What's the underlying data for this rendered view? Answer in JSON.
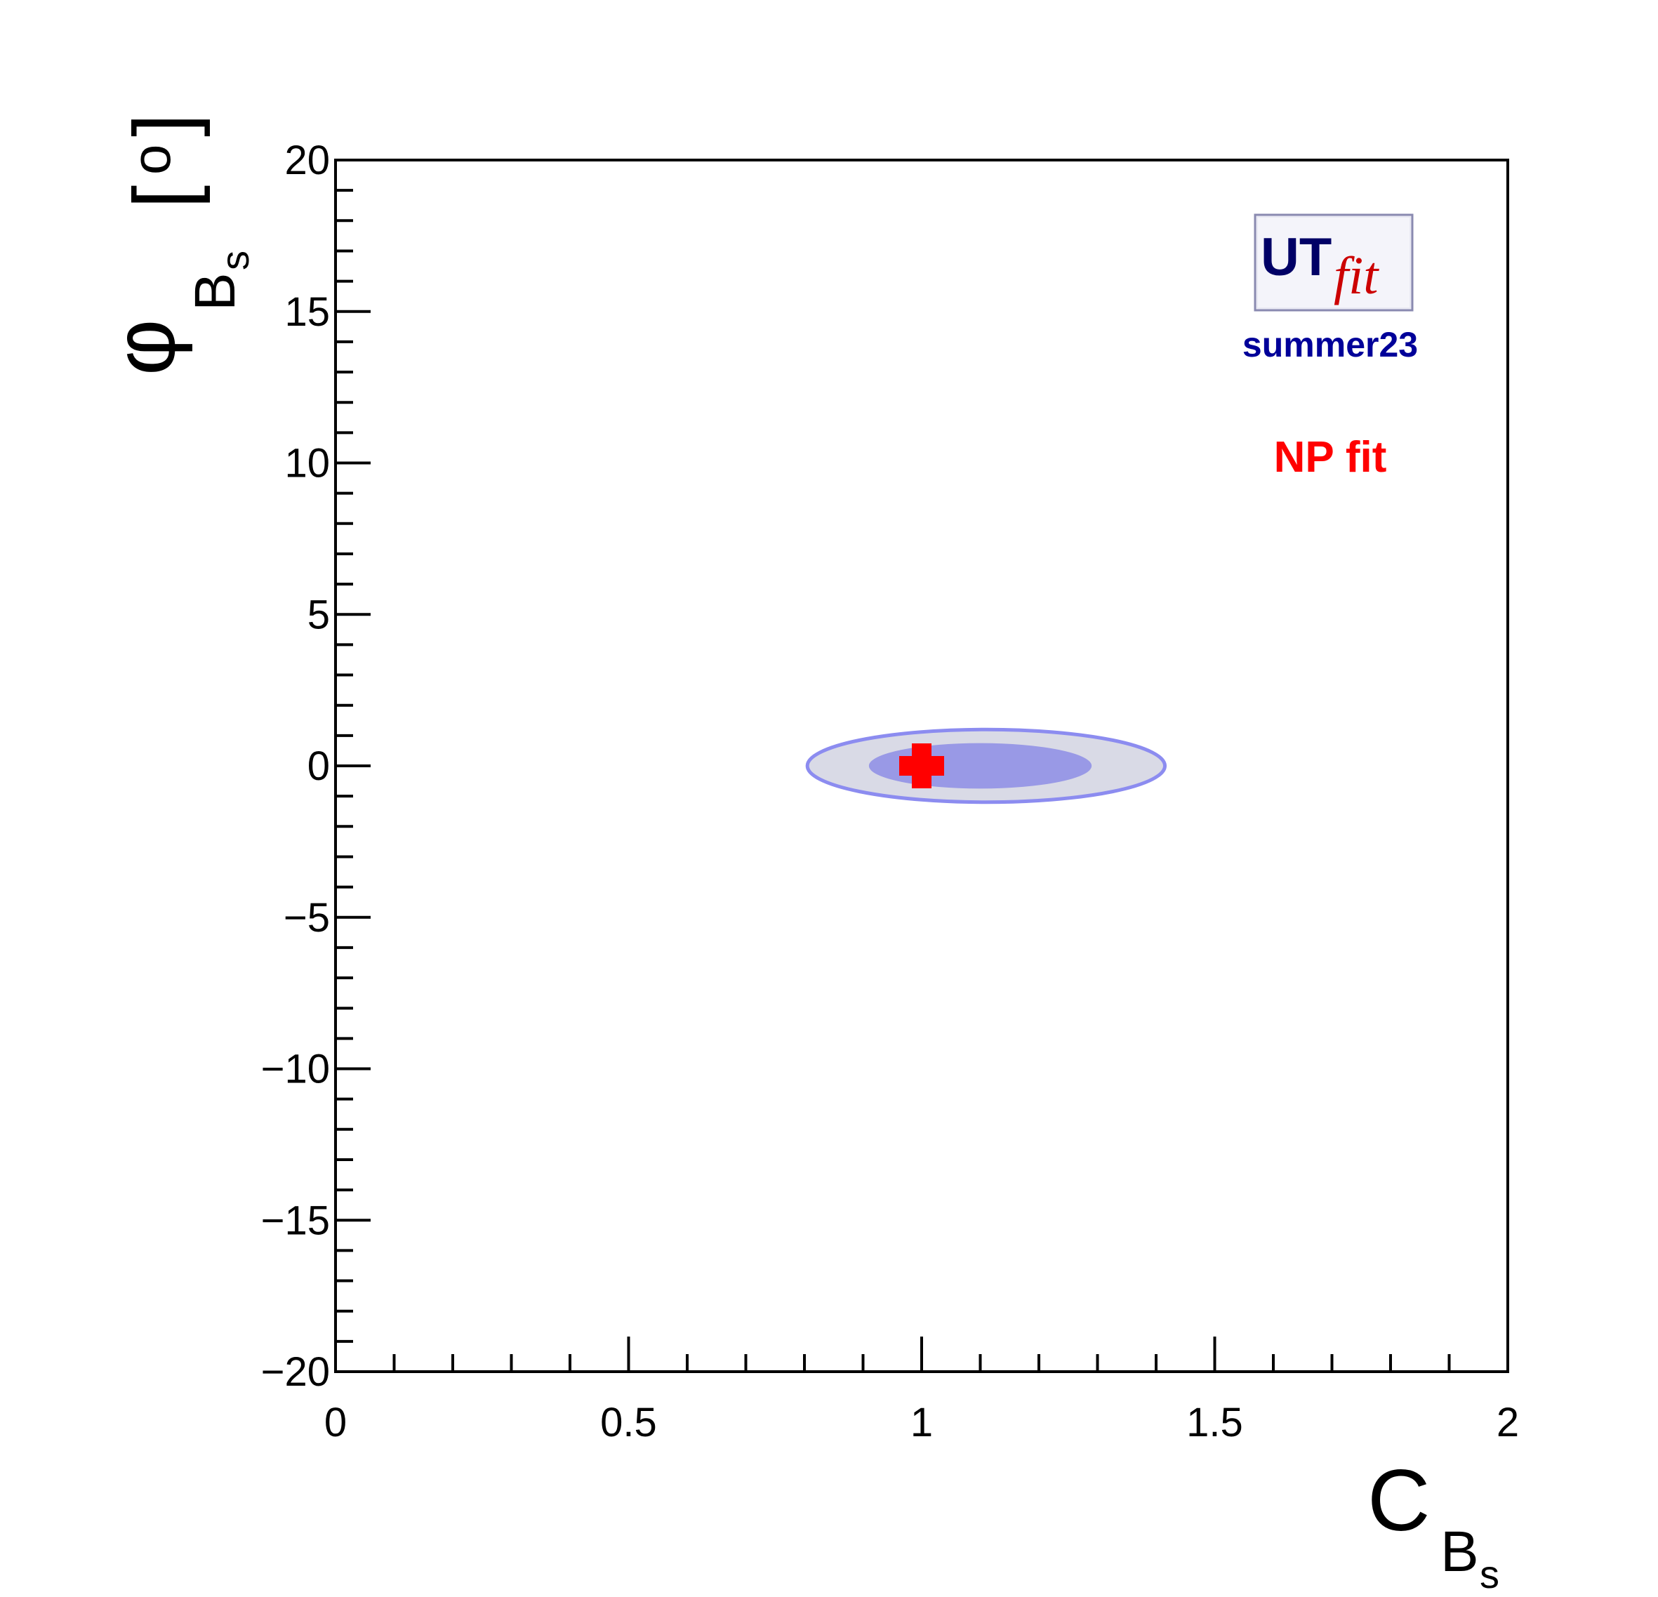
{
  "chart_data": {
    "type": "contour",
    "x_axis": {
      "label_main": "C",
      "label_sub": "B",
      "label_subsub": "s",
      "range": [
        0,
        2
      ],
      "major_ticks": [
        0,
        0.5,
        1,
        1.5,
        2
      ],
      "tick_labels": [
        "0",
        "0.5",
        "1",
        "1.5",
        "2"
      ],
      "minor_step": 0.1
    },
    "y_axis": {
      "label_main": "φ",
      "label_sub": "B",
      "label_subsub": "s",
      "label_unit_open": "[",
      "label_unit": "o",
      "label_unit_close": "]",
      "range": [
        -20,
        20
      ],
      "major_ticks": [
        -20,
        -15,
        -10,
        -5,
        0,
        5,
        10,
        15,
        20
      ],
      "tick_labels": [
        "−20",
        "−15",
        "−10",
        "−5",
        "0",
        "5",
        "10",
        "15",
        "20"
      ],
      "minor_step": 1
    },
    "regions": [
      {
        "level": "outer",
        "center": [
          1.11,
          0.0
        ],
        "half_width": 0.305,
        "half_height": 1.2,
        "fill": "#d9dae6",
        "stroke": "#8c8cf0"
      },
      {
        "level": "inner",
        "center": [
          1.1,
          0.0
        ],
        "half_width": 0.19,
        "half_height": 0.75,
        "fill": "#9999e6",
        "stroke": "none"
      }
    ],
    "marker": {
      "x": 1.0,
      "y": 0.0,
      "shape": "cross",
      "color": "#ff0000"
    },
    "annotations": {
      "logo_main": "UT",
      "logo_script": "fit",
      "version": "summer23",
      "fit_type": "NP fit"
    },
    "colors": {
      "version": "#000099",
      "fit_type": "#ff0000",
      "logo_ut": "#000066",
      "logo_fit": "#cc0000"
    },
    "grid": false
  }
}
